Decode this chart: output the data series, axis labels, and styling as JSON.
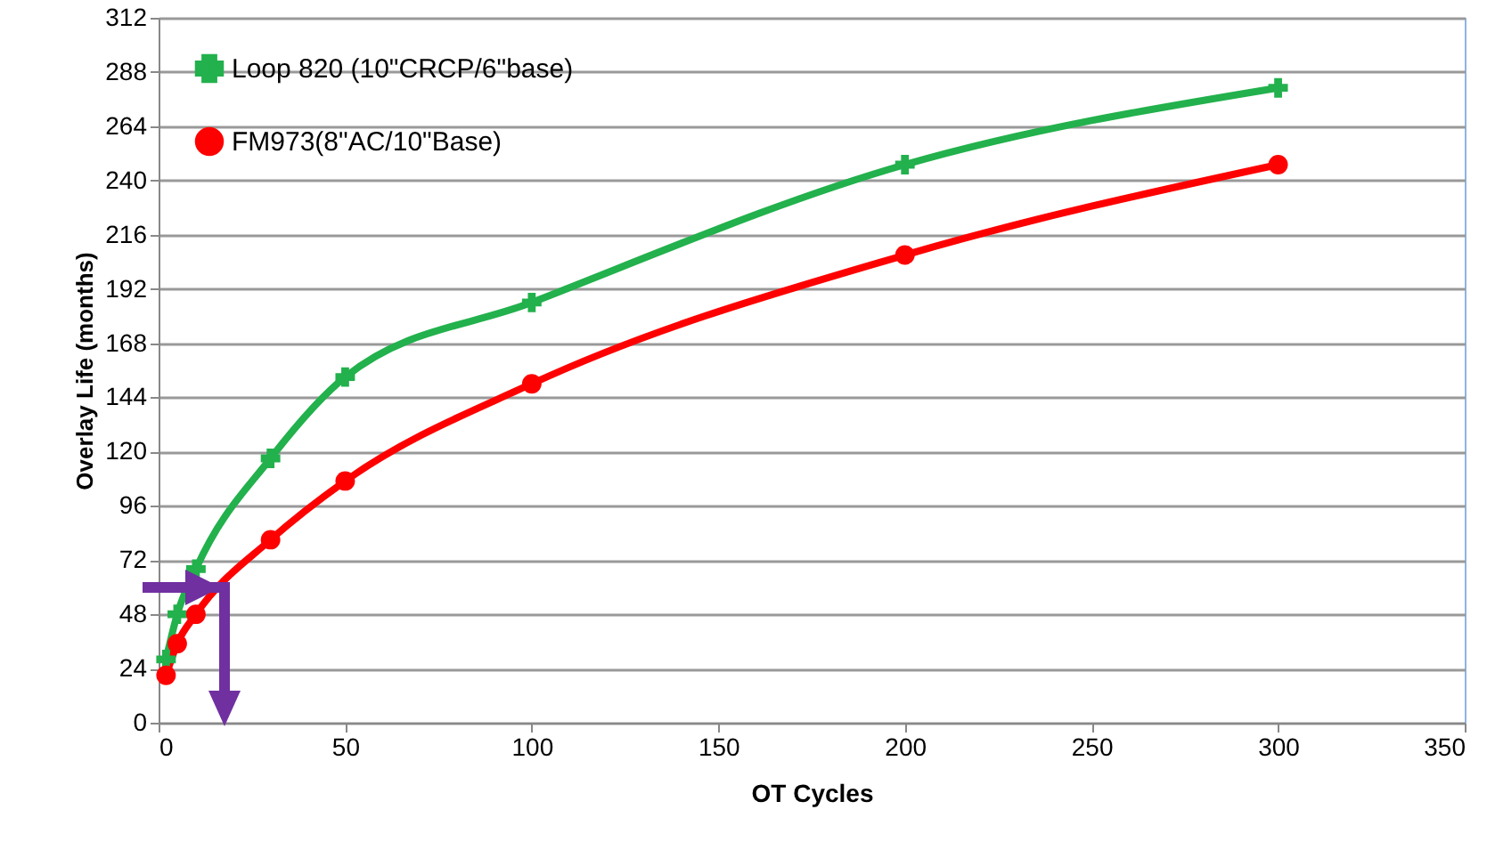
{
  "chart_data": {
    "type": "line",
    "xlabel": "OT Cycles",
    "ylabel": "Overlay Life (months)",
    "x": [
      2,
      5,
      10,
      30,
      50,
      100,
      200,
      300
    ],
    "series": [
      {
        "name": "Loop 820 (10\"CRCP/6\"base)",
        "color": "#22b14c",
        "marker": "cross",
        "values": [
          28,
          48,
          68,
          117,
          153,
          186,
          247,
          281
        ]
      },
      {
        "name": "FM973(8\"AC/10\"Base)",
        "color": "#ff0000",
        "marker": "circle",
        "values": [
          21,
          35,
          48,
          81,
          107,
          150,
          207,
          247
        ]
      }
    ],
    "xlim": [
      0,
      350
    ],
    "xticks": [
      0,
      50,
      100,
      150,
      200,
      250,
      300,
      350
    ],
    "ylim": [
      0,
      312
    ],
    "yticks": [
      0,
      24,
      48,
      72,
      96,
      120,
      144,
      168,
      192,
      216,
      240,
      264,
      288,
      312
    ],
    "grid": "y",
    "legend": "top left",
    "line_style": "solid"
  }
}
